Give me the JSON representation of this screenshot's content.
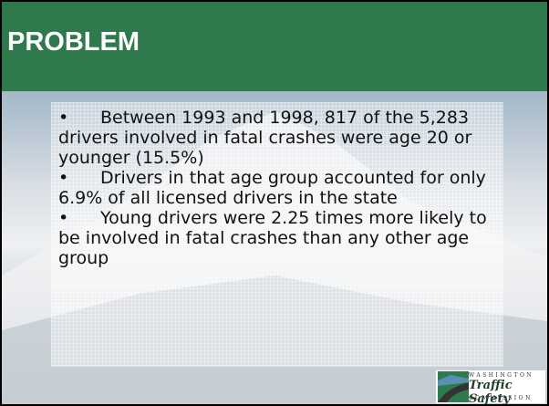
{
  "header": {
    "title": "PROBLEM"
  },
  "bullets": [
    "Between 1993 and 1998, 817 of the 5,283 drivers involved in fatal crashes were age 20 or younger (15.5%)",
    "Drivers in that age group accounted for only 6.9% of all licensed drivers in the state",
    "Young drivers were 2.25 times more likely to be involved in fatal crashes than any other age group"
  ],
  "logo": {
    "top": "WASHINGTON",
    "name": "Traffic Safety",
    "bottom": "COMMISSION"
  }
}
